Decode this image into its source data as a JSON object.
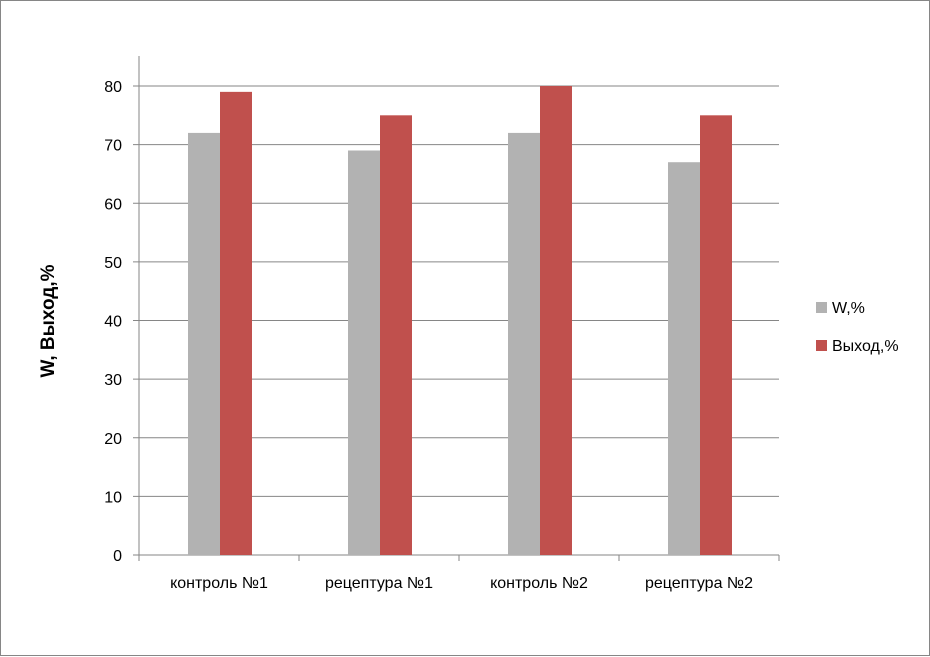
{
  "chart_data": {
    "type": "bar",
    "title": "",
    "xlabel": "",
    "ylabel": "W, Выход,%",
    "ylim": [
      0,
      80
    ],
    "yticks": [
      0,
      10,
      20,
      30,
      40,
      50,
      60,
      70,
      80
    ],
    "grid": true,
    "legend_position": "right",
    "categories": [
      "контроль №1",
      "рецептура №1",
      "контроль №2",
      "рецептура №2"
    ],
    "series": [
      {
        "name": "W,%",
        "color": "#b2b2b2",
        "values": [
          72,
          69,
          72,
          67
        ]
      },
      {
        "name": "Выход,%",
        "color": "#c0504d",
        "values": [
          79,
          75,
          80,
          75
        ]
      }
    ]
  }
}
